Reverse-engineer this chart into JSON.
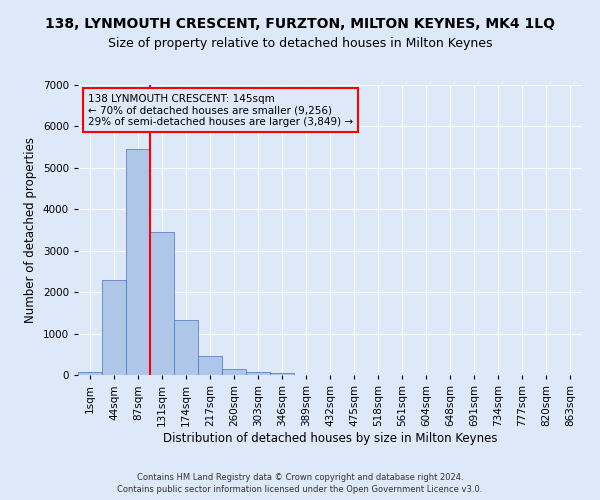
{
  "title": "138, LYNMOUTH CRESCENT, FURZTON, MILTON KEYNES, MK4 1LQ",
  "subtitle": "Size of property relative to detached houses in Milton Keynes",
  "xlabel": "Distribution of detached houses by size in Milton Keynes",
  "ylabel": "Number of detached properties",
  "footnote1": "Contains HM Land Registry data © Crown copyright and database right 2024.",
  "footnote2": "Contains public sector information licensed under the Open Government Licence v3.0.",
  "annotation_line1": "138 LYNMOUTH CRESCENT: 145sqm",
  "annotation_line2": "← 70% of detached houses are smaller (9,256)",
  "annotation_line3": "29% of semi-detached houses are larger (3,849) →",
  "bar_values": [
    75,
    2300,
    5450,
    3450,
    1320,
    470,
    155,
    80,
    45,
    0,
    0,
    0,
    0,
    0,
    0,
    0,
    0,
    0,
    0,
    0
  ],
  "bar_labels": [
    "1sqm",
    "44sqm",
    "87sqm",
    "131sqm",
    "174sqm",
    "217sqm",
    "260sqm",
    "303sqm",
    "346sqm",
    "389sqm",
    "432sqm",
    "475sqm",
    "518sqm",
    "561sqm",
    "604sqm",
    "648sqm",
    "691sqm",
    "734sqm",
    "777sqm",
    "820sqm",
    "863sqm"
  ],
  "bar_color": "#aec6e8",
  "bar_edge_color": "#4472c4",
  "vline_color": "red",
  "annotation_box_color": "red",
  "ylim": [
    0,
    7000
  ],
  "yticks": [
    0,
    1000,
    2000,
    3000,
    4000,
    5000,
    6000,
    7000
  ],
  "background_color": "#dde8f8",
  "grid_color": "#ffffff",
  "title_fontsize": 10,
  "subtitle_fontsize": 9,
  "xlabel_fontsize": 8.5,
  "ylabel_fontsize": 8.5,
  "tick_fontsize": 7.5,
  "footnote_fontsize": 6,
  "annotation_fontsize": 7.5
}
